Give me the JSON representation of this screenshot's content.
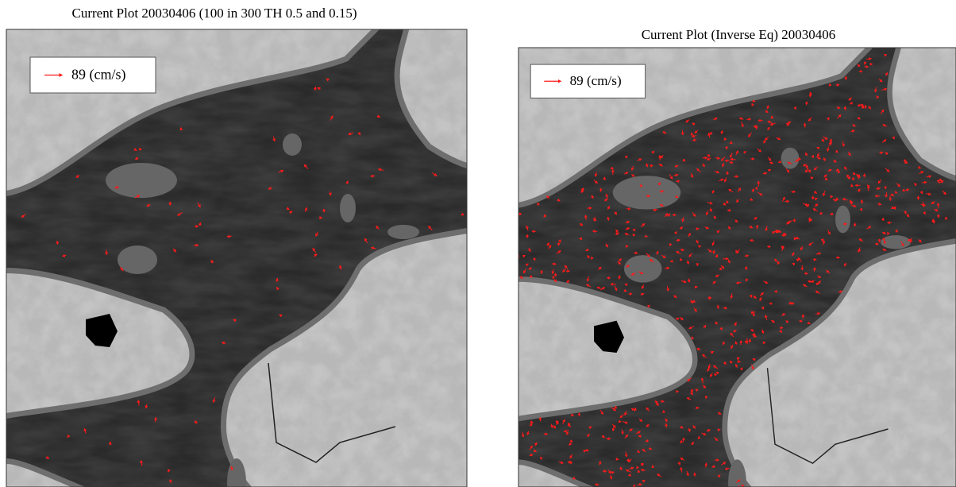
{
  "panels": [
    {
      "title": "Current Plot 20030406 (100 in 300 TH 0.5 and 0.15)",
      "legend": {
        "label": "89 (cm/s)"
      }
    },
    {
      "title": "Current Plot (Inverse Eq) 20030406",
      "legend": {
        "label": "89 (cm/s)"
      }
    }
  ]
}
